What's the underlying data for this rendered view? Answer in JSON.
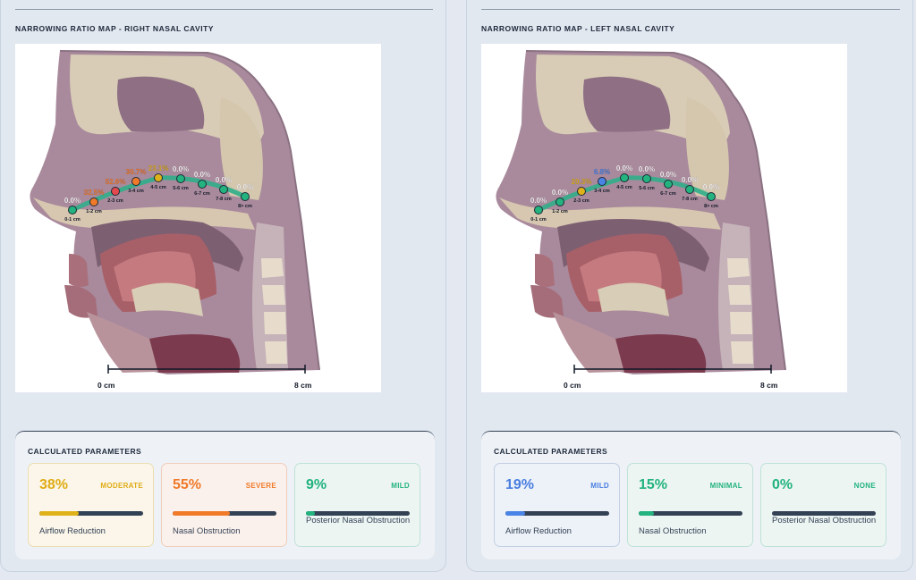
{
  "right": {
    "title": "NARROWING RATIO MAP - RIGHT NASAL CAVITY",
    "points": [
      {
        "seg": "0-1 cm",
        "value": "0.0%",
        "color": "#22b37e",
        "label_color": "#ffffff"
      },
      {
        "seg": "1-2 cm",
        "value": "32.5%",
        "color": "#f07a2a",
        "label_color": "#f07a2a"
      },
      {
        "seg": "2-3 cm",
        "value": "52.6%",
        "color": "#e5484d",
        "label_color": "#f07a2a"
      },
      {
        "seg": "3-4 cm",
        "value": "30.7%",
        "color": "#f07a2a",
        "label_color": "#f07a2a"
      },
      {
        "seg": "4-5 cm",
        "value": "23.1%",
        "color": "#e0b21a",
        "label_color": "#e0b21a"
      },
      {
        "seg": "5-6 cm",
        "value": "0.0%",
        "color": "#22b37e",
        "label_color": "#ffffff"
      },
      {
        "seg": "6-7 cm",
        "value": "0.0%",
        "color": "#22b37e",
        "label_color": "#ffffff"
      },
      {
        "seg": "7-8 cm",
        "value": "0.0%",
        "color": "#22b37e",
        "label_color": "#ffffff"
      },
      {
        "seg": "8> cm",
        "value": "0.0%",
        "color": "#22b37e",
        "label_color": "#ffffff"
      }
    ],
    "scale_start": "0 cm",
    "scale_end": "8 cm",
    "params_title": "CALCULATED PARAMETERS",
    "cards": [
      {
        "value": "38%",
        "severity": "MODERATE",
        "label": "Airflow Reduction",
        "level": 0.38
      },
      {
        "value": "55%",
        "severity": "SEVERE",
        "label": "Nasal Obstruction",
        "level": 0.55
      },
      {
        "value": "9%",
        "severity": "MILD",
        "label": "Posterior Nasal Obstruction",
        "level": 0.09
      }
    ]
  },
  "left": {
    "title": "NARROWING RATIO MAP - LEFT NASAL CAVITY",
    "points": [
      {
        "seg": "0-1 cm",
        "value": "0.0%",
        "color": "#22b37e",
        "label_color": "#ffffff"
      },
      {
        "seg": "1-2 cm",
        "value": "0.0%",
        "color": "#22b37e",
        "label_color": "#ffffff"
      },
      {
        "seg": "2-3 cm",
        "value": "20.3%",
        "color": "#e0b21a",
        "label_color": "#e0b21a"
      },
      {
        "seg": "3-4 cm",
        "value": "6.8%",
        "color": "#4a84e6",
        "label_color": "#4a84e6"
      },
      {
        "seg": "4-5 cm",
        "value": "0.0%",
        "color": "#22b37e",
        "label_color": "#ffffff"
      },
      {
        "seg": "5-6 cm",
        "value": "0.0%",
        "color": "#22b37e",
        "label_color": "#ffffff"
      },
      {
        "seg": "6-7 cm",
        "value": "0.0%",
        "color": "#22b37e",
        "label_color": "#ffffff"
      },
      {
        "seg": "7-8 cm",
        "value": "0.0%",
        "color": "#22b37e",
        "label_color": "#ffffff"
      },
      {
        "seg": "8> cm",
        "value": "0.0%",
        "color": "#22b37e",
        "label_color": "#ffffff"
      }
    ],
    "scale_start": "0 cm",
    "scale_end": "8 cm",
    "params_title": "CALCULATED PARAMETERS",
    "cards": [
      {
        "value": "19%",
        "severity": "MILD",
        "label": "Airflow Reduction",
        "level": 0.19
      },
      {
        "value": "15%",
        "severity": "MINIMAL",
        "label": "Nasal Obstruction",
        "level": 0.15
      },
      {
        "value": "0%",
        "severity": "NONE",
        "label": "Posterior Nasal Obstruction",
        "level": 0.0
      }
    ]
  },
  "colors": {
    "moderate": "#e0b21a",
    "severe": "#f07a2a",
    "mild_green": "#22b37e",
    "mild_blue": "#4a84e6",
    "track": "#334155"
  }
}
